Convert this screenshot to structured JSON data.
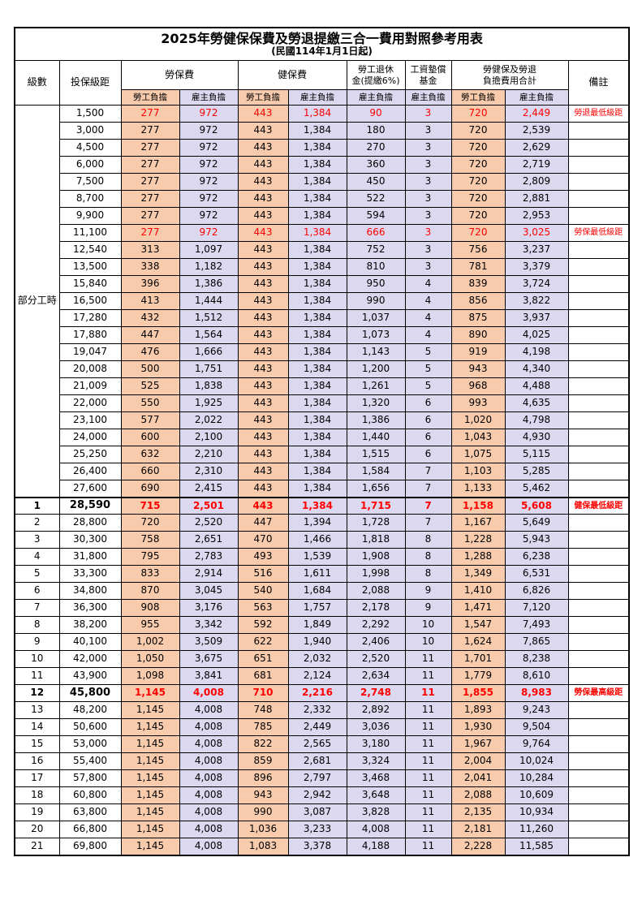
{
  "title": "2025年勞健保保費及勞退提繳三合一費用對照參考用表",
  "subtitle": "(民國114年1月1日起)",
  "header": {
    "level": "級數",
    "bracket": "投保級距",
    "labor_ins": "勞保費",
    "health_ins": "健保費",
    "pension_line1": "勞工退休",
    "pension_line2": "金(提繳6%)",
    "wage_fund_line1": "工資墊償",
    "wage_fund_line2": "基金",
    "total_line1": "勞健保及勞退",
    "total_line2": "負擔費用合計",
    "note": "備註",
    "employee": "勞工負擔",
    "employer": "雇主負擔"
  },
  "part_time_label": "部分工時",
  "part_time_rowspan": 23,
  "value_col_classes": [
    "emp",
    "er",
    "emp",
    "er",
    "er",
    "er",
    "emp",
    "er"
  ],
  "colors": {
    "employee_bg": "#F8CBAD",
    "employer_bg": "#DCD8F0",
    "highlight_text": "#FF0000"
  },
  "rows": [
    {
      "level": null,
      "bracket": "1,500",
      "values": [
        "277",
        "972",
        "443",
        "1,384",
        "90",
        "3",
        "720",
        "2,449"
      ],
      "note": "勞退最低級距",
      "highlight": true,
      "bold": false
    },
    {
      "level": null,
      "bracket": "3,000",
      "values": [
        "277",
        "972",
        "443",
        "1,384",
        "180",
        "3",
        "720",
        "2,539"
      ],
      "note": "",
      "highlight": false,
      "bold": false
    },
    {
      "level": null,
      "bracket": "4,500",
      "values": [
        "277",
        "972",
        "443",
        "1,384",
        "270",
        "3",
        "720",
        "2,629"
      ],
      "note": "",
      "highlight": false,
      "bold": false
    },
    {
      "level": null,
      "bracket": "6,000",
      "values": [
        "277",
        "972",
        "443",
        "1,384",
        "360",
        "3",
        "720",
        "2,719"
      ],
      "note": "",
      "highlight": false,
      "bold": false
    },
    {
      "level": null,
      "bracket": "7,500",
      "values": [
        "277",
        "972",
        "443",
        "1,384",
        "450",
        "3",
        "720",
        "2,809"
      ],
      "note": "",
      "highlight": false,
      "bold": false
    },
    {
      "level": null,
      "bracket": "8,700",
      "values": [
        "277",
        "972",
        "443",
        "1,384",
        "522",
        "3",
        "720",
        "2,881"
      ],
      "note": "",
      "highlight": false,
      "bold": false
    },
    {
      "level": null,
      "bracket": "9,900",
      "values": [
        "277",
        "972",
        "443",
        "1,384",
        "594",
        "3",
        "720",
        "2,953"
      ],
      "note": "",
      "highlight": false,
      "bold": false
    },
    {
      "level": null,
      "bracket": "11,100",
      "values": [
        "277",
        "972",
        "443",
        "1,384",
        "666",
        "3",
        "720",
        "3,025"
      ],
      "note": "勞保最低級距",
      "highlight": true,
      "bold": false
    },
    {
      "level": null,
      "bracket": "12,540",
      "values": [
        "313",
        "1,097",
        "443",
        "1,384",
        "752",
        "3",
        "756",
        "3,237"
      ],
      "note": "",
      "highlight": false,
      "bold": false
    },
    {
      "level": null,
      "bracket": "13,500",
      "values": [
        "338",
        "1,182",
        "443",
        "1,384",
        "810",
        "3",
        "781",
        "3,379"
      ],
      "note": "",
      "highlight": false,
      "bold": false
    },
    {
      "level": null,
      "bracket": "15,840",
      "values": [
        "396",
        "1,386",
        "443",
        "1,384",
        "950",
        "4",
        "839",
        "3,724"
      ],
      "note": "",
      "highlight": false,
      "bold": false
    },
    {
      "level": null,
      "bracket": "16,500",
      "values": [
        "413",
        "1,444",
        "443",
        "1,384",
        "990",
        "4",
        "856",
        "3,822"
      ],
      "note": "",
      "highlight": false,
      "bold": false
    },
    {
      "level": null,
      "bracket": "17,280",
      "values": [
        "432",
        "1,512",
        "443",
        "1,384",
        "1,037",
        "4",
        "875",
        "3,937"
      ],
      "note": "",
      "highlight": false,
      "bold": false
    },
    {
      "level": null,
      "bracket": "17,880",
      "values": [
        "447",
        "1,564",
        "443",
        "1,384",
        "1,073",
        "4",
        "890",
        "4,025"
      ],
      "note": "",
      "highlight": false,
      "bold": false
    },
    {
      "level": null,
      "bracket": "19,047",
      "values": [
        "476",
        "1,666",
        "443",
        "1,384",
        "1,143",
        "5",
        "919",
        "4,198"
      ],
      "note": "",
      "highlight": false,
      "bold": false
    },
    {
      "level": null,
      "bracket": "20,008",
      "values": [
        "500",
        "1,751",
        "443",
        "1,384",
        "1,200",
        "5",
        "943",
        "4,340"
      ],
      "note": "",
      "highlight": false,
      "bold": false
    },
    {
      "level": null,
      "bracket": "21,009",
      "values": [
        "525",
        "1,838",
        "443",
        "1,384",
        "1,261",
        "5",
        "968",
        "4,488"
      ],
      "note": "",
      "highlight": false,
      "bold": false
    },
    {
      "level": null,
      "bracket": "22,000",
      "values": [
        "550",
        "1,925",
        "443",
        "1,384",
        "1,320",
        "6",
        "993",
        "4,635"
      ],
      "note": "",
      "highlight": false,
      "bold": false
    },
    {
      "level": null,
      "bracket": "23,100",
      "values": [
        "577",
        "2,022",
        "443",
        "1,384",
        "1,386",
        "6",
        "1,020",
        "4,798"
      ],
      "note": "",
      "highlight": false,
      "bold": false
    },
    {
      "level": null,
      "bracket": "24,000",
      "values": [
        "600",
        "2,100",
        "443",
        "1,384",
        "1,440",
        "6",
        "1,043",
        "4,930"
      ],
      "note": "",
      "highlight": false,
      "bold": false
    },
    {
      "level": null,
      "bracket": "25,250",
      "values": [
        "632",
        "2,210",
        "443",
        "1,384",
        "1,515",
        "6",
        "1,075",
        "5,115"
      ],
      "note": "",
      "highlight": false,
      "bold": false
    },
    {
      "level": null,
      "bracket": "26,400",
      "values": [
        "660",
        "2,310",
        "443",
        "1,384",
        "1,584",
        "7",
        "1,103",
        "5,285"
      ],
      "note": "",
      "highlight": false,
      "bold": false
    },
    {
      "level": null,
      "bracket": "27,600",
      "values": [
        "690",
        "2,415",
        "443",
        "1,384",
        "1,656",
        "7",
        "1,133",
        "5,462"
      ],
      "note": "",
      "highlight": false,
      "bold": false
    },
    {
      "level": "1",
      "bracket": "28,590",
      "values": [
        "715",
        "2,501",
        "443",
        "1,384",
        "1,715",
        "7",
        "1,158",
        "5,608"
      ],
      "note": "健保最低級距",
      "highlight": true,
      "bold": true,
      "section_start": true
    },
    {
      "level": "2",
      "bracket": "28,800",
      "values": [
        "720",
        "2,520",
        "447",
        "1,394",
        "1,728",
        "7",
        "1,167",
        "5,649"
      ],
      "note": "",
      "highlight": false,
      "bold": false
    },
    {
      "level": "3",
      "bracket": "30,300",
      "values": [
        "758",
        "2,651",
        "470",
        "1,466",
        "1,818",
        "8",
        "1,228",
        "5,943"
      ],
      "note": "",
      "highlight": false,
      "bold": false
    },
    {
      "level": "4",
      "bracket": "31,800",
      "values": [
        "795",
        "2,783",
        "493",
        "1,539",
        "1,908",
        "8",
        "1,288",
        "6,238"
      ],
      "note": "",
      "highlight": false,
      "bold": false
    },
    {
      "level": "5",
      "bracket": "33,300",
      "values": [
        "833",
        "2,914",
        "516",
        "1,611",
        "1,998",
        "8",
        "1,349",
        "6,531"
      ],
      "note": "",
      "highlight": false,
      "bold": false
    },
    {
      "level": "6",
      "bracket": "34,800",
      "values": [
        "870",
        "3,045",
        "540",
        "1,684",
        "2,088",
        "9",
        "1,410",
        "6,826"
      ],
      "note": "",
      "highlight": false,
      "bold": false
    },
    {
      "level": "7",
      "bracket": "36,300",
      "values": [
        "908",
        "3,176",
        "563",
        "1,757",
        "2,178",
        "9",
        "1,471",
        "7,120"
      ],
      "note": "",
      "highlight": false,
      "bold": false
    },
    {
      "level": "8",
      "bracket": "38,200",
      "values": [
        "955",
        "3,342",
        "592",
        "1,849",
        "2,292",
        "10",
        "1,547",
        "7,493"
      ],
      "note": "",
      "highlight": false,
      "bold": false
    },
    {
      "level": "9",
      "bracket": "40,100",
      "values": [
        "1,002",
        "3,509",
        "622",
        "1,940",
        "2,406",
        "10",
        "1,624",
        "7,865"
      ],
      "note": "",
      "highlight": false,
      "bold": false
    },
    {
      "level": "10",
      "bracket": "42,000",
      "values": [
        "1,050",
        "3,675",
        "651",
        "2,032",
        "2,520",
        "11",
        "1,701",
        "8,238"
      ],
      "note": "",
      "highlight": false,
      "bold": false
    },
    {
      "level": "11",
      "bracket": "43,900",
      "values": [
        "1,098",
        "3,841",
        "681",
        "2,124",
        "2,634",
        "11",
        "1,779",
        "8,610"
      ],
      "note": "",
      "highlight": false,
      "bold": false
    },
    {
      "level": "12",
      "bracket": "45,800",
      "values": [
        "1,145",
        "4,008",
        "710",
        "2,216",
        "2,748",
        "11",
        "1,855",
        "8,983"
      ],
      "note": "勞保最高級距",
      "highlight": true,
      "bold": true
    },
    {
      "level": "13",
      "bracket": "48,200",
      "values": [
        "1,145",
        "4,008",
        "748",
        "2,332",
        "2,892",
        "11",
        "1,893",
        "9,243"
      ],
      "note": "",
      "highlight": false,
      "bold": false
    },
    {
      "level": "14",
      "bracket": "50,600",
      "values": [
        "1,145",
        "4,008",
        "785",
        "2,449",
        "3,036",
        "11",
        "1,930",
        "9,504"
      ],
      "note": "",
      "highlight": false,
      "bold": false
    },
    {
      "level": "15",
      "bracket": "53,000",
      "values": [
        "1,145",
        "4,008",
        "822",
        "2,565",
        "3,180",
        "11",
        "1,967",
        "9,764"
      ],
      "note": "",
      "highlight": false,
      "bold": false
    },
    {
      "level": "16",
      "bracket": "55,400",
      "values": [
        "1,145",
        "4,008",
        "859",
        "2,681",
        "3,324",
        "11",
        "2,004",
        "10,024"
      ],
      "note": "",
      "highlight": false,
      "bold": false
    },
    {
      "level": "17",
      "bracket": "57,800",
      "values": [
        "1,145",
        "4,008",
        "896",
        "2,797",
        "3,468",
        "11",
        "2,041",
        "10,284"
      ],
      "note": "",
      "highlight": false,
      "bold": false
    },
    {
      "level": "18",
      "bracket": "60,800",
      "values": [
        "1,145",
        "4,008",
        "943",
        "2,942",
        "3,648",
        "11",
        "2,088",
        "10,609"
      ],
      "note": "",
      "highlight": false,
      "bold": false
    },
    {
      "level": "19",
      "bracket": "63,800",
      "values": [
        "1,145",
        "4,008",
        "990",
        "3,087",
        "3,828",
        "11",
        "2,135",
        "10,934"
      ],
      "note": "",
      "highlight": false,
      "bold": false
    },
    {
      "level": "20",
      "bracket": "66,800",
      "values": [
        "1,145",
        "4,008",
        "1,036",
        "3,233",
        "4,008",
        "11",
        "2,181",
        "11,260"
      ],
      "note": "",
      "highlight": false,
      "bold": false
    },
    {
      "level": "21",
      "bracket": "69,800",
      "values": [
        "1,145",
        "4,008",
        "1,083",
        "3,378",
        "4,188",
        "11",
        "2,228",
        "11,585"
      ],
      "note": "",
      "highlight": false,
      "bold": false
    }
  ]
}
